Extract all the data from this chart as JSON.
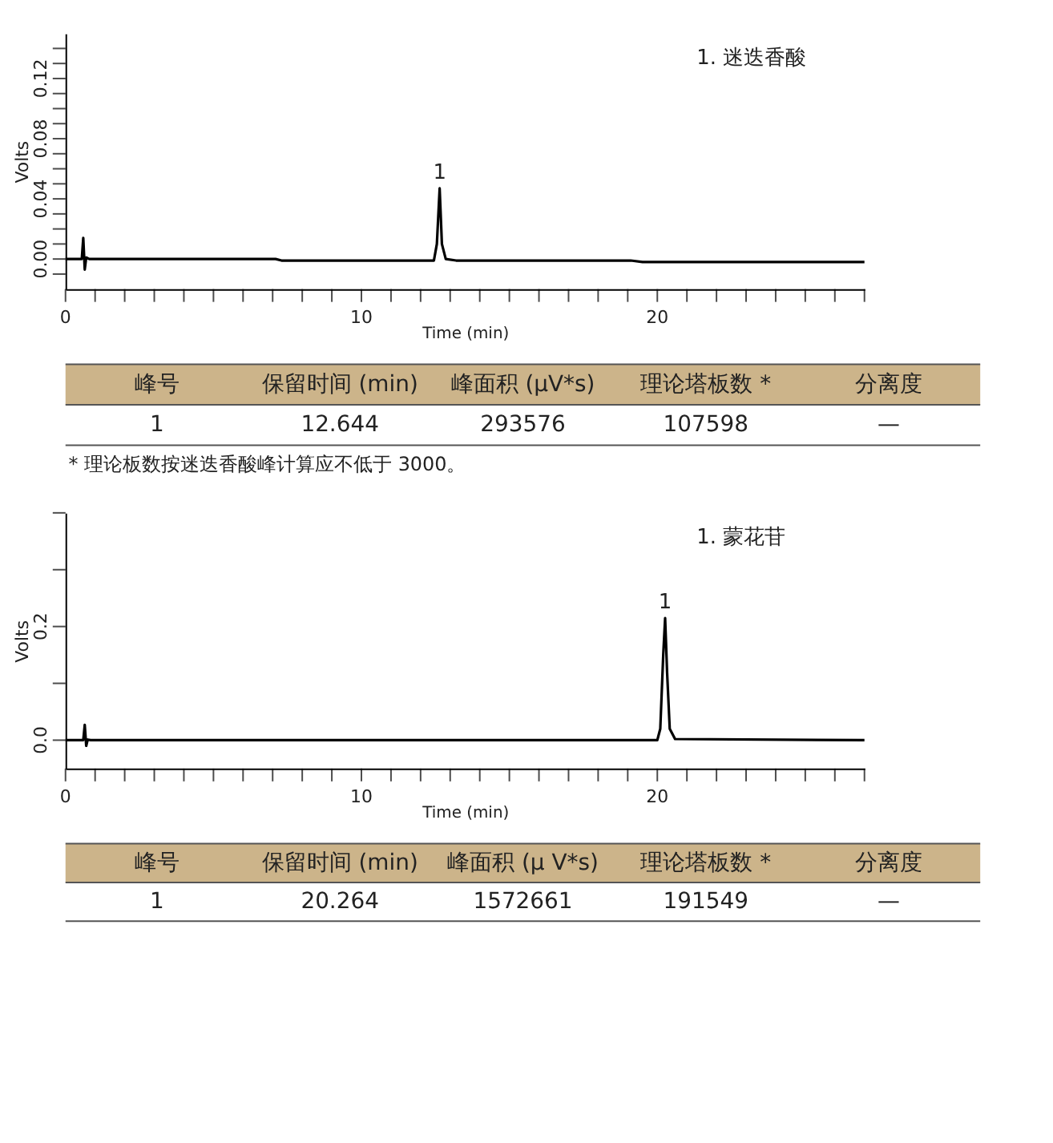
{
  "chart_data": [
    {
      "type": "line",
      "xlabel": "Time (min)",
      "ylabel": "Volts",
      "xlim": [
        0,
        27
      ],
      "ylim": [
        -0.02,
        0.15
      ],
      "xticks": [
        0,
        {
          "value": 1,
          "label": null
        },
        {
          "value": 2,
          "label": null
        },
        {
          "value": 3,
          "label": null
        },
        {
          "value": 4,
          "label": null
        },
        {
          "value": 5,
          "label": null
        },
        {
          "value": 6,
          "label": null
        },
        {
          "value": 7,
          "label": null
        },
        {
          "value": 8,
          "label": null
        },
        {
          "value": 9,
          "label": null
        },
        10,
        {
          "value": 11,
          "label": null
        },
        {
          "value": 12,
          "label": null
        },
        {
          "value": 13,
          "label": null
        },
        {
          "value": 14,
          "label": null
        },
        {
          "value": 15,
          "label": null
        },
        {
          "value": 16,
          "label": null
        },
        {
          "value": 17,
          "label": null
        },
        {
          "value": 18,
          "label": null
        },
        {
          "value": 19,
          "label": null
        },
        20,
        {
          "value": 21,
          "label": null
        },
        {
          "value": 22,
          "label": null
        },
        {
          "value": 23,
          "label": null
        },
        {
          "value": 24,
          "label": null
        },
        {
          "value": 25,
          "label": null
        },
        {
          "value": 26,
          "label": null
        },
        {
          "value": 27,
          "label": null
        }
      ],
      "yticks": [
        {
          "value": -0.01,
          "label": null
        },
        {
          "value": 0,
          "label": "0.00"
        },
        {
          "value": 0.01,
          "label": null
        },
        {
          "value": 0.02,
          "label": null
        },
        {
          "value": 0.03,
          "label": null
        },
        {
          "value": 0.04,
          "label": "0.04"
        },
        {
          "value": 0.05,
          "label": null
        },
        {
          "value": 0.06,
          "label": null
        },
        {
          "value": 0.07,
          "label": null
        },
        {
          "value": 0.08,
          "label": "0.08"
        },
        {
          "value": 0.09,
          "label": null
        },
        {
          "value": 0.1,
          "label": null
        },
        {
          "value": 0.11,
          "label": null
        },
        {
          "value": 0.12,
          "label": "0.12"
        },
        {
          "value": 0.13,
          "label": null
        },
        {
          "value": 0.14,
          "label": null
        }
      ],
      "x": [
        0,
        0.55,
        0.6,
        0.65,
        0.7,
        0.8,
        7.1,
        7.3,
        12.45,
        12.55,
        12.644,
        12.72,
        12.85,
        13.2,
        19.1,
        19.5,
        27
      ],
      "series": [
        {
          "color": "#000000",
          "values": [
            0,
            0,
            0.014,
            -0.007,
            0.001,
            0,
            0,
            -0.001,
            -0.001,
            0.01,
            0.047,
            0.01,
            0,
            -0.001,
            -0.001,
            -0.002,
            -0.002
          ]
        }
      ],
      "annotations": [
        {
          "text": "1",
          "x": 12.644,
          "y": 0.047
        },
        "1.  迷迭香酸"
      ],
      "grid": false,
      "marker": "none"
    },
    {
      "type": "other",
      "categories": [
        "峰号",
        "保留时间 (min)",
        "峰面积 (μV*s)",
        "理论塔板数 *",
        "分离度"
      ],
      "annotations": [
        "1",
        "12.644",
        "293576",
        "107598",
        "—",
        "* 理论板数按迷迭香酸峰计算应不低于 3000。"
      ],
      "color": "#ccb48a"
    },
    {
      "type": "line",
      "xlabel": "Time (min)",
      "ylabel": "Volts",
      "xlim": [
        0,
        27
      ],
      "ylim": [
        -0.05,
        0.4
      ],
      "xticks": [
        0,
        {
          "value": 1,
          "label": null
        },
        {
          "value": 2,
          "label": null
        },
        {
          "value": 3,
          "label": null
        },
        {
          "value": 4,
          "label": null
        },
        {
          "value": 5,
          "label": null
        },
        {
          "value": 6,
          "label": null
        },
        {
          "value": 7,
          "label": null
        },
        {
          "value": 8,
          "label": null
        },
        {
          "value": 9,
          "label": null
        },
        10,
        {
          "value": 11,
          "label": null
        },
        {
          "value": 12,
          "label": null
        },
        {
          "value": 13,
          "label": null
        },
        {
          "value": 14,
          "label": null
        },
        {
          "value": 15,
          "label": null
        },
        {
          "value": 16,
          "label": null
        },
        {
          "value": 17,
          "label": null
        },
        {
          "value": 18,
          "label": null
        },
        {
          "value": 19,
          "label": null
        },
        20,
        {
          "value": 21,
          "label": null
        },
        {
          "value": 22,
          "label": null
        },
        {
          "value": 23,
          "label": null
        },
        {
          "value": 24,
          "label": null
        },
        {
          "value": 25,
          "label": null
        },
        {
          "value": 26,
          "label": null
        },
        {
          "value": 27,
          "label": null
        }
      ],
      "yticks": [
        {
          "value": 0,
          "label": "0.0"
        },
        {
          "value": 0.1,
          "label": null
        },
        {
          "value": 0.2,
          "label": "0.2"
        },
        {
          "value": 0.3,
          "label": null
        },
        {
          "value": 0.4,
          "label": null
        }
      ],
      "x": [
        0,
        0.6,
        0.65,
        0.7,
        0.75,
        0.85,
        20.0,
        20.1,
        20.2,
        20.264,
        20.33,
        20.42,
        20.6,
        27
      ],
      "series": [
        {
          "color": "#000000",
          "values": [
            0,
            0,
            0.027,
            -0.01,
            0.001,
            0,
            0,
            0.02,
            0.15,
            0.215,
            0.12,
            0.02,
            0.002,
            0
          ]
        }
      ],
      "annotations": [
        {
          "text": "1",
          "x": 20.264,
          "y": 0.215
        },
        "1.  蒙花苷"
      ],
      "grid": false,
      "marker": "none"
    },
    {
      "type": "other",
      "categories": [
        "峰号",
        "保留时间 (min)",
        "峰面积 (μ V*s)",
        "理论塔板数 *",
        "分离度"
      ],
      "annotations": [
        "1",
        "20.264",
        "1572661",
        "191549",
        "—"
      ],
      "color": "#ccb48a"
    }
  ]
}
